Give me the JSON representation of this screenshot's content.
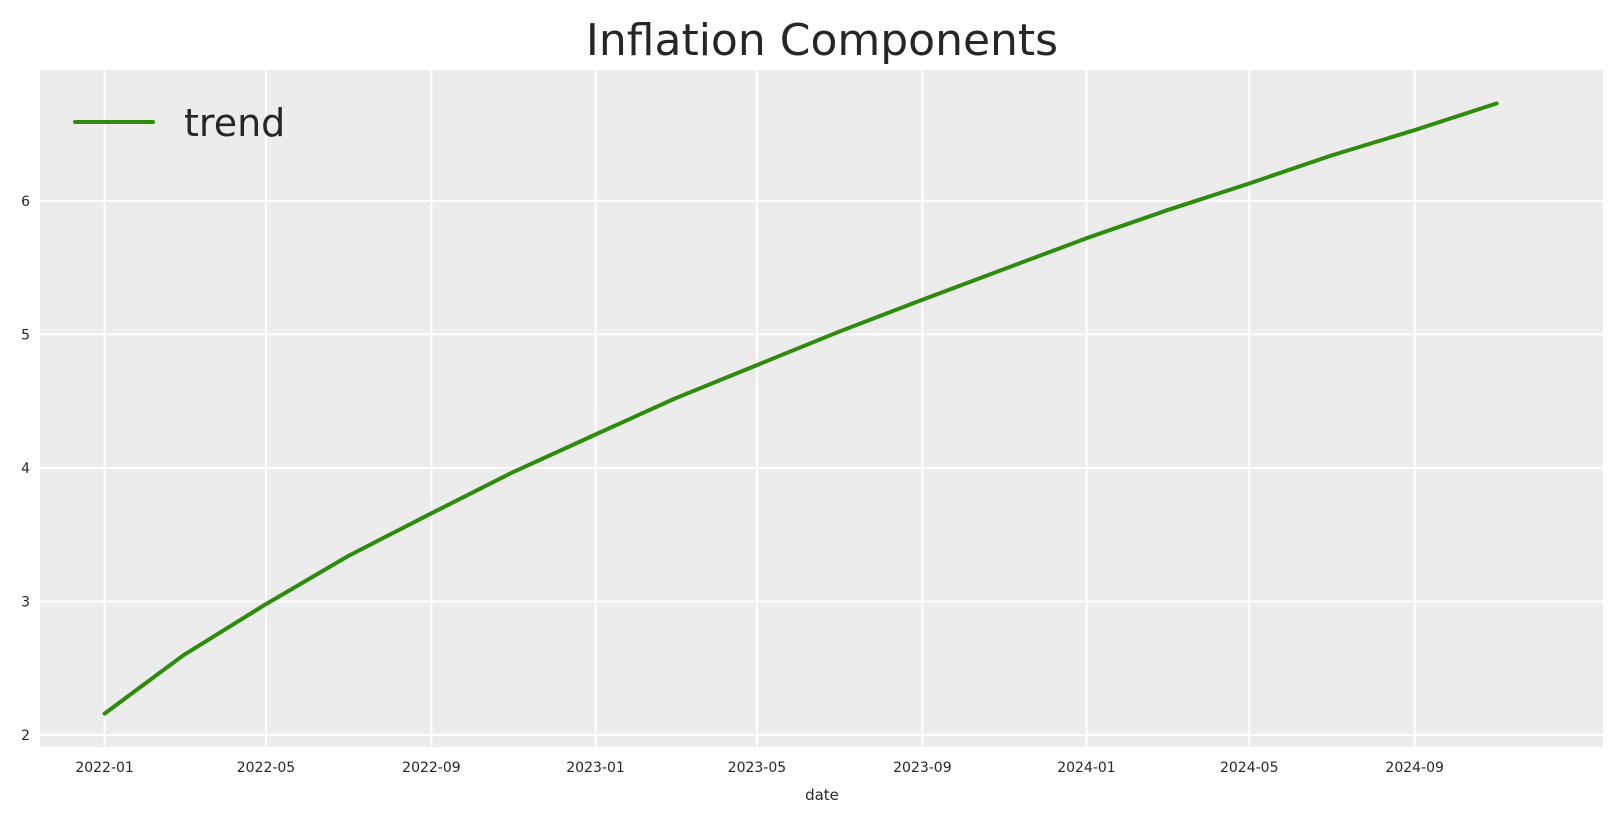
{
  "chart_data": {
    "type": "line",
    "title": "Inflation Components",
    "xlabel": "date",
    "ylabel": "",
    "x_ticks": [
      "2022-01",
      "2022-05",
      "2022-09",
      "2023-01",
      "2023-05",
      "2023-09",
      "2024-01",
      "2024-05",
      "2024-09"
    ],
    "y_ticks": [
      2,
      3,
      4,
      5,
      6
    ],
    "xlim": [
      "2021-11-14",
      "2025-01-19"
    ],
    "ylim": [
      1.91,
      6.98
    ],
    "grid": true,
    "legend_position": "top-left",
    "background_color": "#ececec",
    "series": [
      {
        "name": "trend",
        "color": "#2e8b0c",
        "points": [
          {
            "x": "2022-01-01",
            "y": 2.16
          },
          {
            "x": "2022-03-01",
            "y": 2.6
          },
          {
            "x": "2022-05-01",
            "y": 2.98
          },
          {
            "x": "2022-07-01",
            "y": 3.34
          },
          {
            "x": "2022-09-01",
            "y": 3.66
          },
          {
            "x": "2022-11-01",
            "y": 3.97
          },
          {
            "x": "2023-01-01",
            "y": 4.25
          },
          {
            "x": "2023-03-01",
            "y": 4.52
          },
          {
            "x": "2023-05-01",
            "y": 4.77
          },
          {
            "x": "2023-07-01",
            "y": 5.02
          },
          {
            "x": "2023-09-01",
            "y": 5.26
          },
          {
            "x": "2023-11-01",
            "y": 5.49
          },
          {
            "x": "2024-01-01",
            "y": 5.72
          },
          {
            "x": "2024-03-01",
            "y": 5.93
          },
          {
            "x": "2024-05-01",
            "y": 6.13
          },
          {
            "x": "2024-07-01",
            "y": 6.34
          },
          {
            "x": "2024-09-01",
            "y": 6.53
          },
          {
            "x": "2024-11-01",
            "y": 6.73
          }
        ]
      }
    ]
  }
}
